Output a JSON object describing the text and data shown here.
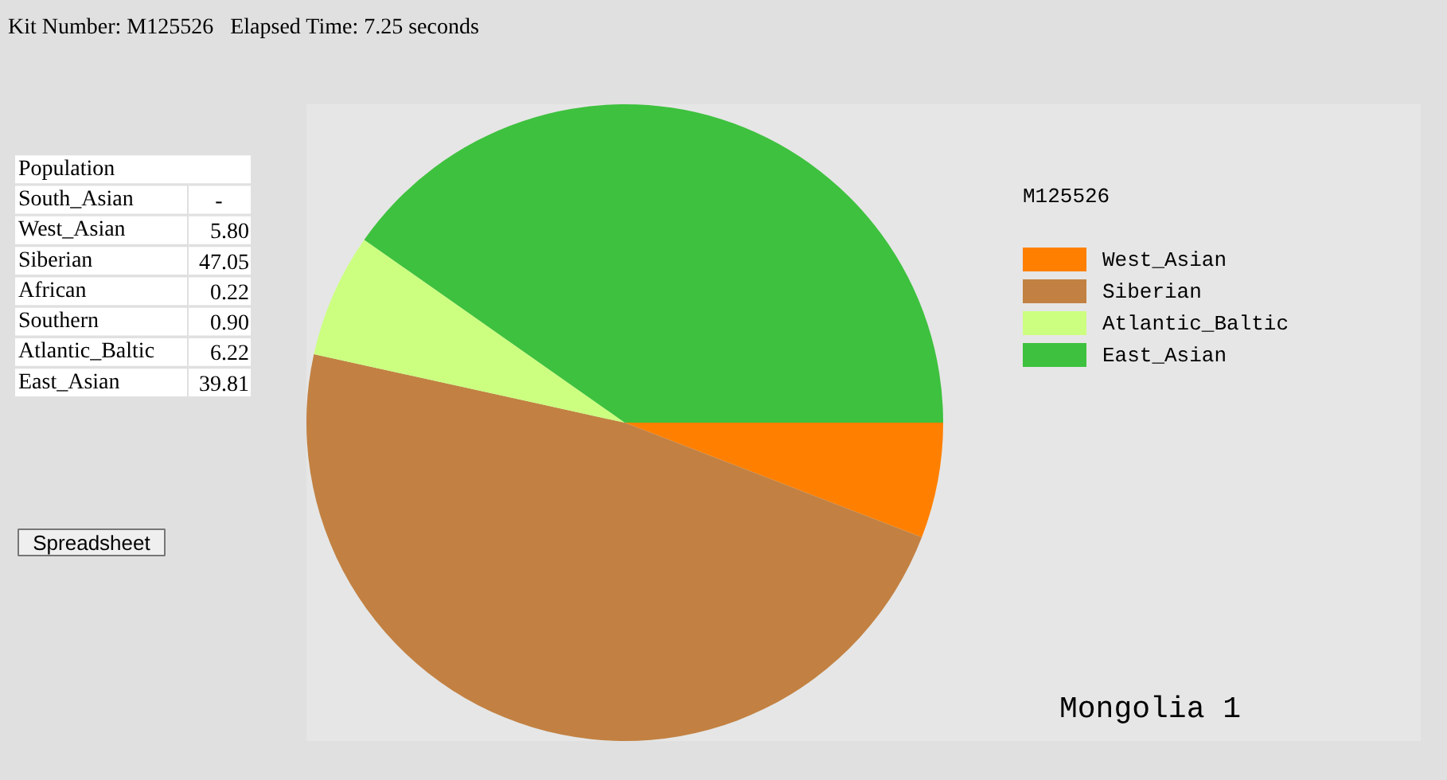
{
  "chart_data": [
    {
      "type": "other",
      "title": "Kit Number: M125526   Elapsed Time: 7.25 seconds",
      "xlabel": "Population",
      "categories": [
        "South_Asian",
        "West_Asian",
        "Siberian",
        "African",
        "Southern",
        "Atlantic_Baltic",
        "East_Asian"
      ],
      "value_labels": [
        "-",
        "5.80",
        "47.05",
        "0.22",
        "0.90",
        "6.22",
        "39.81"
      ],
      "annotations": [
        "Spreadsheet"
      ]
    },
    {
      "type": "pie",
      "subtitle": "M125526",
      "categories": [
        "West_Asian",
        "Siberian",
        "Atlantic_Baltic",
        "East_Asian"
      ],
      "values": [
        5.8,
        47.05,
        6.22,
        39.81
      ],
      "colors": [
        "#ff8000",
        "#c28142",
        "#ccff80",
        "#3ec13e"
      ],
      "legend": "right",
      "annotations": [
        "Mongolia 1"
      ]
    }
  ]
}
